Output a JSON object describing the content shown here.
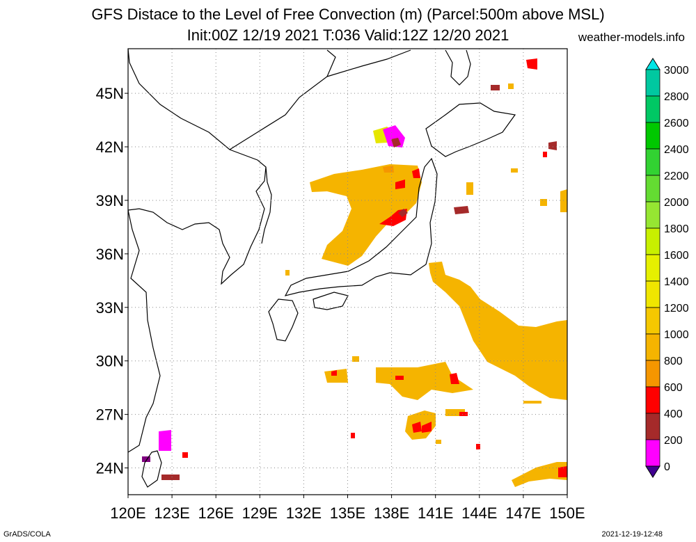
{
  "header": {
    "title_line1": "GFS Distace to the Level of Free Convection (m) (Parcel:500m above MSL)",
    "title_line2": "Init:00Z 12/19 2021 T:036 Valid:12Z 12/20 2021",
    "site": "weather-models.info"
  },
  "map": {
    "lat_range": [
      22.5,
      47.5
    ],
    "lon_range": [
      120,
      150
    ],
    "lat_ticks": [
      "45N",
      "42N",
      "39N",
      "36N",
      "33N",
      "30N",
      "27N",
      "24N"
    ],
    "lon_ticks": [
      "120E",
      "123E",
      "126E",
      "129E",
      "132E",
      "135E",
      "138E",
      "141E",
      "144E",
      "147E",
      "150E"
    ],
    "grid": true
  },
  "colorbar": {
    "labels": [
      "3000",
      "2800",
      "2600",
      "2400",
      "2200",
      "2000",
      "1800",
      "1600",
      "1400",
      "1200",
      "1000",
      "800",
      "600",
      "400",
      "200",
      "0"
    ],
    "colors": [
      "#1e3cff",
      "#00c8c8",
      "#00dc00",
      "#a0e632",
      "#e6dc32",
      "#e6af2d",
      "#f08228",
      "#fa3c3c",
      "#a02828",
      "#ff00ff",
      "#400080"
    ],
    "bins": [
      {
        "color": "#00e6e6"
      },
      {
        "color": "#00c8a0"
      },
      {
        "color": "#00c864"
      },
      {
        "color": "#00c800"
      },
      {
        "color": "#32d232"
      },
      {
        "color": "#64dc32"
      },
      {
        "color": "#96e632"
      },
      {
        "color": "#c8f000"
      },
      {
        "color": "#e6f000"
      },
      {
        "color": "#f0e600"
      },
      {
        "color": "#f5c800"
      },
      {
        "color": "#f5b400"
      },
      {
        "color": "#f59600"
      },
      {
        "color": "#ff0000"
      },
      {
        "color": "#a52a2a"
      },
      {
        "color": "#ff00ff"
      },
      {
        "color": "#400090"
      }
    ]
  },
  "footer": {
    "left": "GrADS/COLA",
    "right": "2021-12-19-12:48"
  }
}
